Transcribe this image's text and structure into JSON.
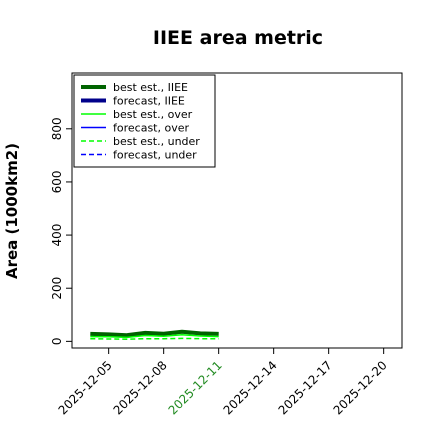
{
  "chart_data": {
    "type": "line",
    "title": "IIEE area metric",
    "xlabel": "",
    "ylabel": "Area (1000km2)",
    "x_tick_labels": [
      "2025-12-05",
      "2025-12-08",
      "2025-12-11",
      "2025-12-14",
      "2025-12-17",
      "2025-12-20"
    ],
    "x_tick_days": [
      5,
      8,
      11,
      14,
      17,
      20
    ],
    "highlighted_x_tick": "2025-12-11",
    "highlight_color": "#228B22",
    "xlim": [
      "2025-12-03",
      "2025-12-21"
    ],
    "y_ticks": [
      0,
      200,
      400,
      600,
      800
    ],
    "y_tick_labels": [
      "0",
      "200",
      "400",
      "600",
      "800"
    ],
    "ylim": [
      -25,
      1010
    ],
    "grid": false,
    "legend_position": "top-left",
    "x": [
      "2025-12-04",
      "2025-12-05",
      "2025-12-06",
      "2025-12-07",
      "2025-12-08",
      "2025-12-09",
      "2025-12-10",
      "2025-12-11"
    ],
    "x_days": [
      4,
      5,
      6,
      7,
      8,
      9,
      10,
      11
    ],
    "series": [
      {
        "name": "best est., IIEE",
        "color": "#006400",
        "width": 4,
        "dash": "",
        "values": [
          28,
          26,
          23,
          32,
          29,
          36,
          30,
          28
        ]
      },
      {
        "name": "forecast, IIEE",
        "color": "#00008B",
        "width": 4,
        "dash": "",
        "values": [
          null,
          null,
          null,
          null,
          null,
          null,
          null,
          null
        ]
      },
      {
        "name": "best est., over",
        "color": "#00FF00",
        "width": 1.5,
        "dash": "",
        "values": [
          18,
          17,
          15,
          22,
          19,
          25,
          20,
          18
        ]
      },
      {
        "name": "forecast, over",
        "color": "#0000FF",
        "width": 1.5,
        "dash": "",
        "values": [
          null,
          null,
          null,
          null,
          null,
          null,
          null,
          null
        ]
      },
      {
        "name": "best est., under",
        "color": "#00FF00",
        "width": 1.5,
        "dash": "5,3",
        "values": [
          10,
          9,
          8,
          10,
          10,
          11,
          10,
          10
        ]
      },
      {
        "name": "forecast, under",
        "color": "#0000FF",
        "width": 1.5,
        "dash": "5,3",
        "values": [
          null,
          null,
          null,
          null,
          null,
          null,
          null,
          null
        ]
      }
    ]
  }
}
